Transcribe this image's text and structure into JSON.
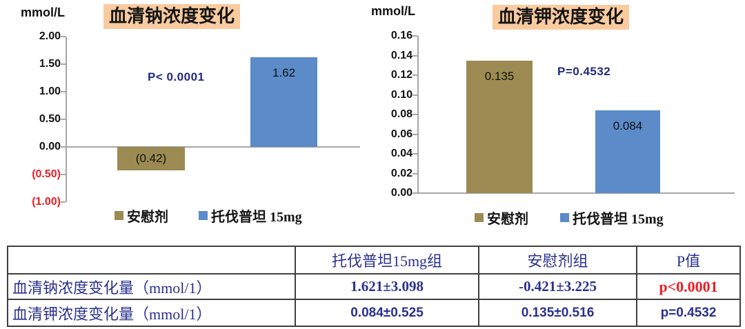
{
  "colors": {
    "placebo_bar": "#9b8b52",
    "tolvaptan_bar": "#5b8bc8",
    "title_highlight": "#f9cb9f",
    "chart_annotation_navy": "#202a7c",
    "table_text_navy": "#29308e",
    "alert_red": "#ed1c24",
    "axis_gray": "#a6a6a6"
  },
  "chart_data": [
    {
      "type": "bar",
      "title": "血清钠浓度变化",
      "unit": "mmol/L",
      "p_annotation": "P< 0.0001",
      "categories": [
        "安慰剂",
        "托伐普坦 15mg"
      ],
      "series": [
        {
          "name": "安慰剂",
          "value": -0.42,
          "bar_label": "(0.42)",
          "color": "#9b8b52"
        },
        {
          "name": "托伐普坦 15mg",
          "value": 1.62,
          "bar_label": "1.62",
          "color": "#5b8bc8"
        }
      ],
      "ylim": [
        -1.0,
        2.0
      ],
      "yticks": [
        {
          "v": 2.0,
          "label": "2.00",
          "color": "#111111"
        },
        {
          "v": 1.5,
          "label": "1.50",
          "color": "#111111"
        },
        {
          "v": 1.0,
          "label": "1.00",
          "color": "#111111"
        },
        {
          "v": 0.5,
          "label": "0.50",
          "color": "#111111"
        },
        {
          "v": 0.0,
          "label": "0.00",
          "color": "#111111"
        },
        {
          "v": -0.5,
          "label": "(0.50)",
          "color": "#ed1c24"
        },
        {
          "v": -1.0,
          "label": "(1.00)",
          "color": "#ed1c24"
        }
      ],
      "grid": false,
      "legend_position": "bottom"
    },
    {
      "type": "bar",
      "title": "血清钾浓度变化",
      "unit": "mmol/L",
      "p_annotation": "P=0.4532",
      "categories": [
        "安慰剂",
        "托伐普坦 15mg"
      ],
      "series": [
        {
          "name": "安慰剂",
          "value": 0.135,
          "bar_label": "0.135",
          "color": "#9b8b52"
        },
        {
          "name": "托伐普坦 15mg",
          "value": 0.084,
          "bar_label": "0.084",
          "color": "#5b8bc8"
        }
      ],
      "ylim": [
        0,
        0.16
      ],
      "yticks": [
        {
          "v": 0.16,
          "label": "0.16",
          "color": "#111111"
        },
        {
          "v": 0.14,
          "label": "0.14",
          "color": "#111111"
        },
        {
          "v": 0.12,
          "label": "0.12",
          "color": "#111111"
        },
        {
          "v": 0.1,
          "label": "0.10",
          "color": "#111111"
        },
        {
          "v": 0.08,
          "label": "0.08",
          "color": "#111111"
        },
        {
          "v": 0.06,
          "label": "0.06",
          "color": "#111111"
        },
        {
          "v": 0.04,
          "label": "0.04",
          "color": "#111111"
        },
        {
          "v": 0.02,
          "label": "0.02",
          "color": "#111111"
        },
        {
          "v": 0.0,
          "label": "0.00",
          "color": "#111111"
        }
      ],
      "grid": false,
      "legend_position": "bottom"
    }
  ],
  "table": {
    "columns": [
      "",
      "托伐普坦15mg组",
      "安慰剂组",
      "P值"
    ],
    "rows": [
      {
        "label": "血清钠浓度变化量（mmol/1）",
        "tolvaptan": "1.621±3.098",
        "placebo": "-0.421±3.225",
        "p": "p<0.0001",
        "p_color": "#ed1c24"
      },
      {
        "label": "血清钾浓度变化量（mmol/1）",
        "tolvaptan": "0.084±0.525",
        "placebo": "0.135±0.516",
        "p": "p=0.4532",
        "p_color": "#29308e"
      }
    ]
  }
}
